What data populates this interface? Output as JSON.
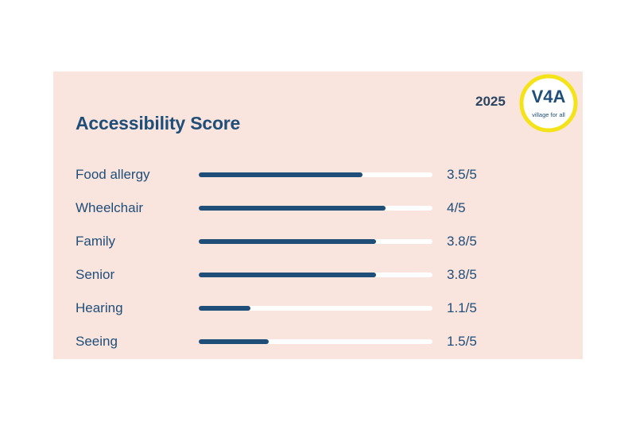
{
  "chart_data": {
    "type": "bar",
    "orientation": "horizontal",
    "title": "Accessibility Score",
    "year": "2025",
    "logo": {
      "text": "V4A",
      "tagline": "village for all"
    },
    "max": 5,
    "categories": [
      "Food allergy",
      "Wheelchair",
      "Family",
      "Senior",
      "Hearing",
      "Seeing"
    ],
    "values": [
      3.5,
      4,
      3.8,
      3.8,
      1.1,
      1.5
    ],
    "value_labels": [
      "3.5/5",
      "4/5",
      "3.8/5",
      "3.8/5",
      "1.1/5",
      "1.5/5"
    ],
    "colors": {
      "bar": "#1f4e79",
      "track": "#ffffff",
      "background": "#f9e4de",
      "logo_ring": "#f5e31a"
    }
  }
}
